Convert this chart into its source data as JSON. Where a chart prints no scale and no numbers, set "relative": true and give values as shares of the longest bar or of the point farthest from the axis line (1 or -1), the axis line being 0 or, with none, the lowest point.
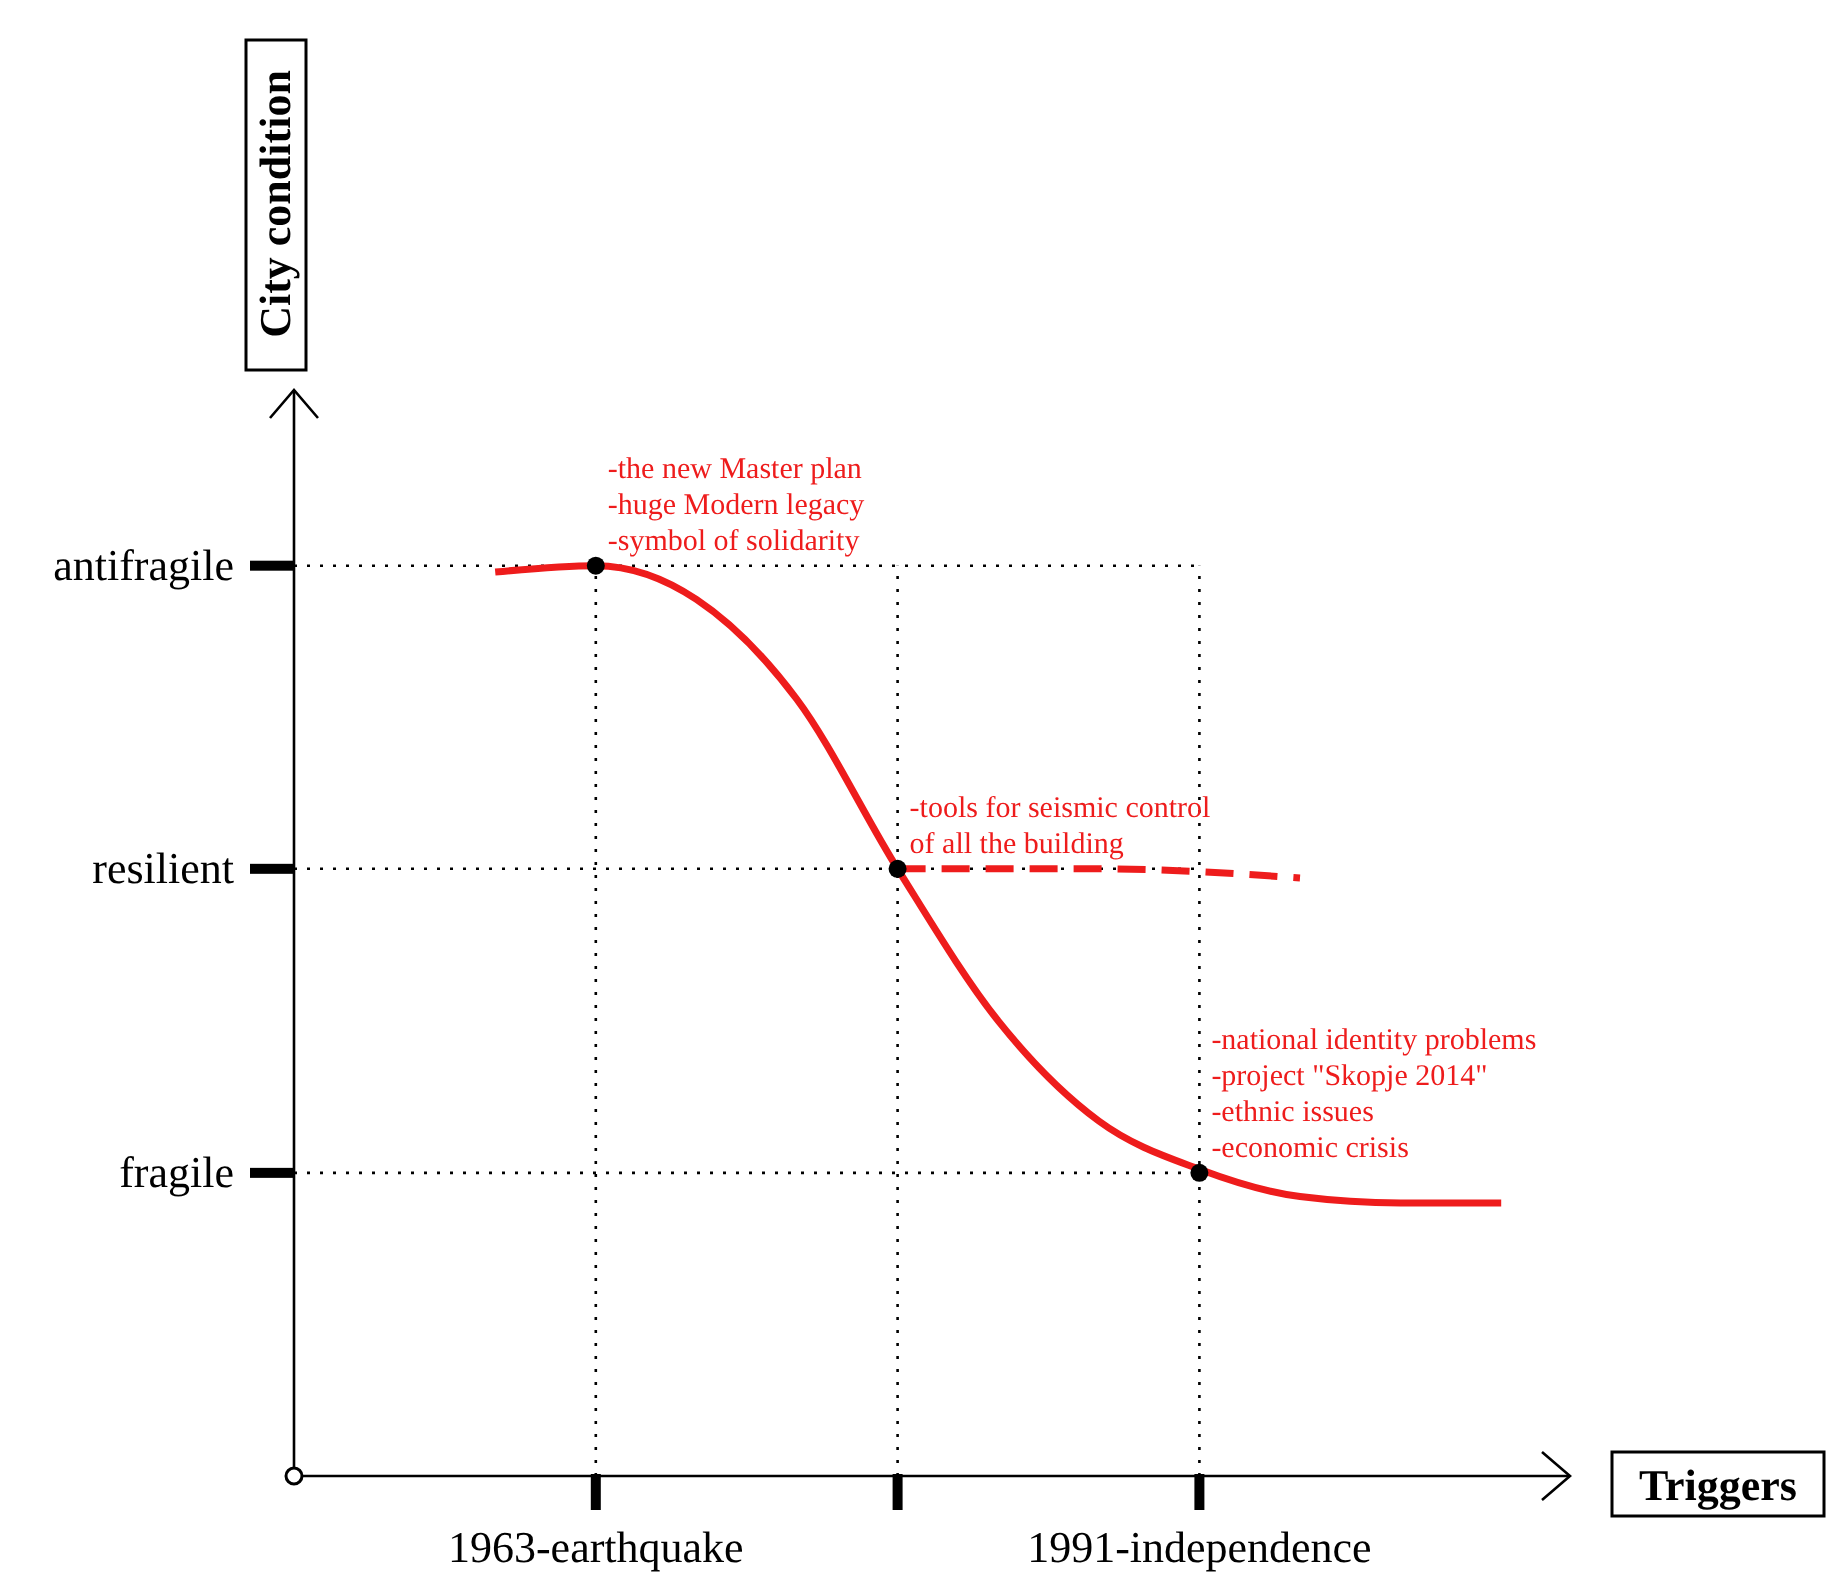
{
  "chart_data": {
    "type": "line",
    "xlabel": "Triggers",
    "relative": true,
    "categories": [
      null,
      "1963-earthquake",
      null,
      null,
      null,
      null,
      null,
      "1991-independence",
      null,
      null,
      null
    ],
    "grid": "x",
    "series": [
      {
        "color": "#ee1c1c",
        "line_style": "solid",
        "values": [
          0.993,
          1,
          0.963,
          0.853,
          0.667,
          0.5,
          0.39,
          0.337,
          0.307,
          0.3,
          0.3
        ]
      },
      {
        "color": "#ee1c1c",
        "line_style": "dashed",
        "values": [
          null,
          null,
          null,
          null,
          0.667,
          null,
          0.667,
          null,
          0.657,
          null,
          null
        ]
      },
      {
        "type": "scatter",
        "color": "#000000",
        "marker": "circle",
        "values": [
          null,
          1,
          null,
          null,
          0.667,
          null,
          null,
          0.333,
          null,
          null,
          null
        ]
      }
    ],
    "annotations": [
      "City condition",
      "antifragile",
      "resilient",
      "fragile",
      {
        "text": "-the new Master plan\n-huge Modern legacy\n-symbol of solidarity",
        "x": "1963-earthquake",
        "y": 1
      },
      {
        "text": "-tools for seismic control\nof all the building",
        "y": 0.667
      },
      {
        "text": "-national identity problems\n-project \"Skopje 2014\"\n-ethnic issues\n-economic crisis",
        "x": "1991-independence",
        "y": 0.333
      }
    ]
  }
}
